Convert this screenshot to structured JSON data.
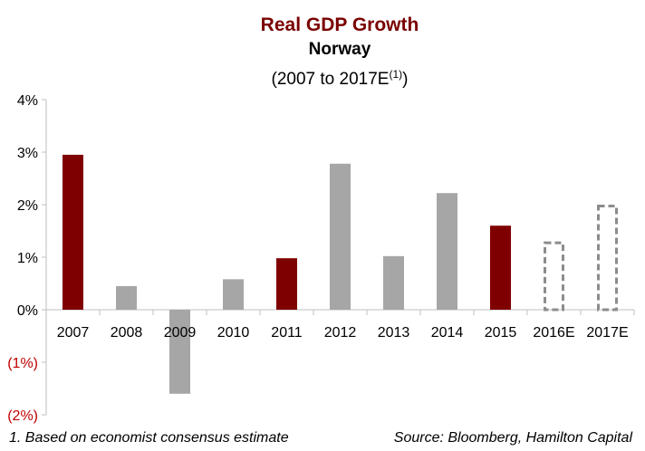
{
  "chart_data": {
    "type": "bar",
    "title": "Real GDP Growth",
    "subtitle": "Norway",
    "period": "(2007 to 2017E",
    "period_sup": "(1)",
    "period_close": ")",
    "categories": [
      "2007",
      "2008",
      "2009",
      "2010",
      "2011",
      "2012",
      "2013",
      "2014",
      "2015",
      "2016E",
      "2017E"
    ],
    "values": [
      2.95,
      0.45,
      -1.6,
      0.58,
      0.98,
      2.78,
      1.02,
      2.22,
      1.6,
      1.3,
      2.0
    ],
    "styles": [
      "highlight",
      "normal",
      "normal",
      "normal",
      "highlight",
      "normal",
      "normal",
      "normal",
      "highlight",
      "estimate",
      "estimate"
    ],
    "ylim": [
      -2,
      4
    ],
    "yticks": [
      {
        "value": 4,
        "label": "4%"
      },
      {
        "value": 3,
        "label": "3%"
      },
      {
        "value": 2,
        "label": "2%"
      },
      {
        "value": 1,
        "label": "1%"
      },
      {
        "value": 0,
        "label": "0%"
      },
      {
        "value": -1,
        "label": "(1%)"
      },
      {
        "value": -2,
        "label": "(2%)"
      }
    ],
    "colors": {
      "highlight": "#7f0000",
      "normal": "#a6a6a6",
      "estimate": "#8c8c8c",
      "negative_label": "#c00000",
      "axis": "#bfbfbf"
    },
    "grid": false
  },
  "footnote": "1. Based on economist consensus estimate",
  "source": "Source: Bloomberg, Hamilton Capital"
}
